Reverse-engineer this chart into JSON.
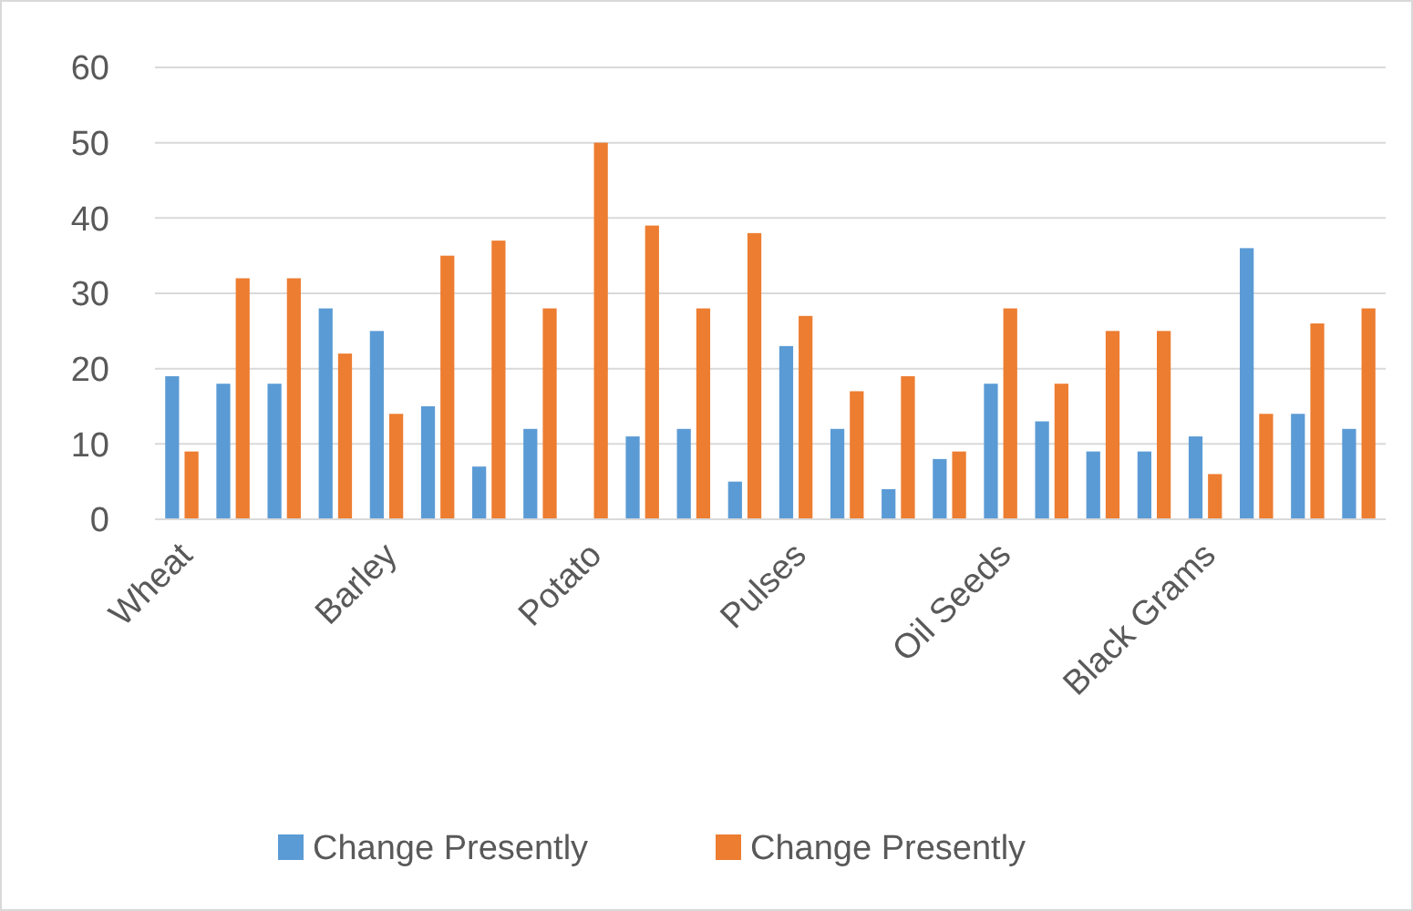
{
  "chart_data": {
    "type": "bar",
    "categories": [
      "Wheat",
      null,
      null,
      null,
      "Barley",
      null,
      null,
      null,
      "Potato",
      null,
      null,
      null,
      "Pulses",
      null,
      null,
      null,
      "Oil Seeds",
      null,
      null,
      null,
      "Black Grams",
      null,
      null,
      null
    ],
    "series": [
      {
        "name": "Change Presently",
        "color": "#5b9bd5",
        "values": [
          19,
          18,
          18,
          28,
          25,
          15,
          7,
          12,
          0,
          11,
          12,
          5,
          23,
          12,
          4,
          8,
          18,
          13,
          9,
          9,
          11,
          36,
          14,
          12
        ]
      },
      {
        "name": "Change Presently",
        "color": "#ed7d31",
        "values": [
          9,
          32,
          32,
          22,
          14,
          35,
          37,
          28,
          50,
          39,
          28,
          38,
          27,
          17,
          19,
          9,
          28,
          18,
          25,
          25,
          6,
          14,
          26,
          28
        ]
      }
    ],
    "ylim": [
      0,
      60
    ],
    "yticks": [
      0,
      10,
      20,
      30,
      40,
      50,
      60
    ],
    "grid": "y",
    "legend": "bottom"
  }
}
